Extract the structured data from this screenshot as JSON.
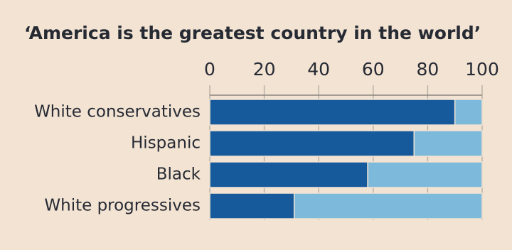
{
  "chart_data": {
    "type": "stacked-barh",
    "title": "‘America is the greatest country in the world’",
    "categories": [
      "White conservatives",
      "Hispanic",
      "Black",
      "White progressives"
    ],
    "series": [
      {
        "color": "#175a9b",
        "values": [
          90,
          75,
          58,
          31
        ]
      },
      {
        "color": "#7cb9da",
        "values": [
          10,
          25,
          42,
          69
        ]
      }
    ],
    "xlim": [
      0,
      100
    ],
    "xticks": [
      0,
      20,
      40,
      60,
      80,
      100
    ],
    "grid": true
  }
}
